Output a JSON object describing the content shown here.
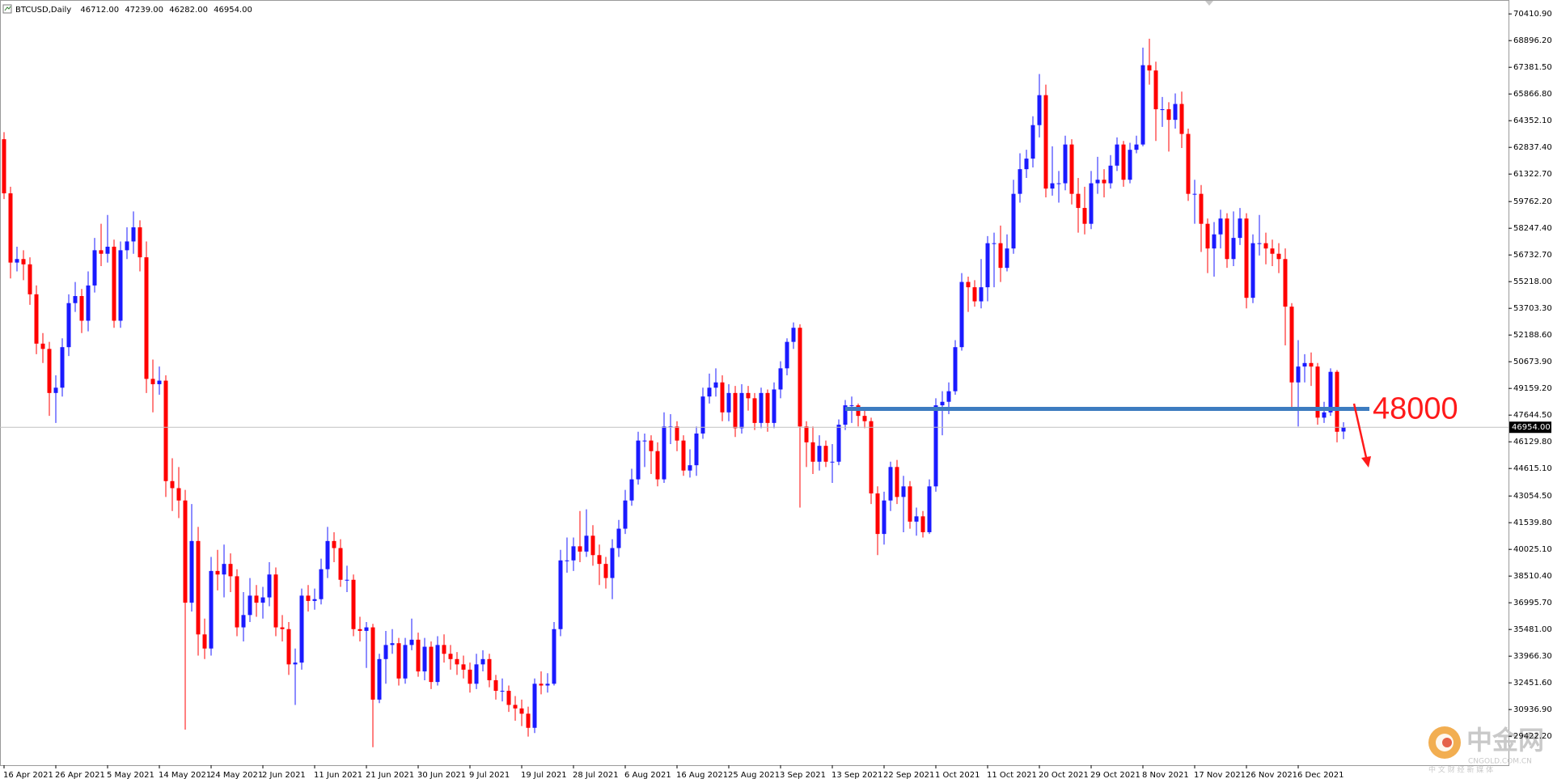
{
  "chart_data": {
    "type": "candlestick",
    "symbol": "BTCUSD,Daily",
    "ohlc_labels": [
      "46712.00",
      "47239.00",
      "46282.00",
      "46954.00"
    ],
    "up_color": "#1a1aff",
    "down_color": "#ff0000",
    "categories": [
      "16 Apr 2021",
      null,
      null,
      null,
      null,
      null,
      null,
      null,
      "26 Apr 2021",
      null,
      null,
      null,
      null,
      null,
      null,
      null,
      "5 May 2021",
      null,
      null,
      null,
      null,
      null,
      null,
      null,
      "14 May 2021",
      null,
      null,
      null,
      null,
      null,
      null,
      null,
      "24 May 2021",
      null,
      null,
      null,
      null,
      null,
      null,
      null,
      "2 Jun 2021",
      null,
      null,
      null,
      null,
      null,
      null,
      null,
      "11 Jun 2021",
      null,
      null,
      null,
      null,
      null,
      null,
      null,
      "21 Jun 2021",
      null,
      null,
      null,
      null,
      null,
      null,
      null,
      "30 Jun 2021",
      null,
      null,
      null,
      null,
      null,
      null,
      null,
      "9 Jul 2021",
      null,
      null,
      null,
      null,
      null,
      null,
      null,
      "19 Jul 2021",
      null,
      null,
      null,
      null,
      null,
      null,
      null,
      "28 Jul 2021",
      null,
      null,
      null,
      null,
      null,
      null,
      null,
      "6 Aug 2021",
      null,
      null,
      null,
      null,
      null,
      null,
      null,
      "16 Aug 2021",
      null,
      null,
      null,
      null,
      null,
      null,
      null,
      "25 Aug 2021",
      null,
      null,
      null,
      null,
      null,
      null,
      null,
      "3 Sep 2021",
      null,
      null,
      null,
      null,
      null,
      null,
      null,
      "13 Sep 2021",
      null,
      null,
      null,
      null,
      null,
      null,
      null,
      "22 Sep 2021",
      null,
      null,
      null,
      null,
      null,
      null,
      null,
      "1 Oct 2021",
      null,
      null,
      null,
      null,
      null,
      null,
      null,
      "11 Oct 2021",
      null,
      null,
      null,
      null,
      null,
      null,
      null,
      "20 Oct 2021",
      null,
      null,
      null,
      null,
      null,
      null,
      null,
      "29 Oct 2021",
      null,
      null,
      null,
      null,
      null,
      null,
      null,
      "8 Nov 2021",
      null,
      null,
      null,
      null,
      null,
      null,
      null,
      "17 Nov 2021",
      null,
      null,
      null,
      null,
      null,
      null,
      null,
      "26 Nov 2021",
      null,
      null,
      null,
      null,
      null,
      null,
      null,
      "6 Dec 2021",
      null,
      null,
      null,
      null,
      null,
      null,
      null
    ],
    "open": [
      63300,
      60230,
      56300,
      56500,
      56200,
      54500,
      51700,
      51400,
      48900,
      49200,
      51500,
      54000,
      54400,
      53000,
      55000,
      57000,
      56800,
      57200,
      53000,
      57000,
      57500,
      58300,
      56600,
      49700,
      49400,
      49600,
      43900,
      43500,
      42800,
      37000,
      40500,
      35200,
      34400,
      38800,
      38600,
      39200,
      38500,
      35600,
      36300,
      37400,
      37000,
      37300,
      38600,
      35600,
      35500,
      33500,
      33600,
      37400,
      37100,
      37200,
      38900,
      40500,
      40100,
      38300,
      38300,
      35500,
      35400,
      35600,
      31500,
      33800,
      34600,
      34700,
      32700,
      34600,
      34900,
      33100,
      34500,
      32500,
      34600,
      34100,
      33800,
      33500,
      33200,
      32400,
      33500,
      33800,
      32600,
      32000,
      32000,
      31200,
      31000,
      30700,
      29900,
      32400,
      32300,
      32400,
      35500,
      39400,
      39400,
      40200,
      39900,
      40800,
      39700,
      39200,
      38400,
      40100,
      41200,
      42800,
      44000,
      46200,
      46200,
      45600,
      44000,
      47000,
      47000,
      46200,
      44500,
      44800,
      46600,
      48700,
      49200,
      49500,
      47800,
      48900,
      46900,
      48900,
      48600,
      47200,
      48900,
      47200,
      49100,
      50300,
      51800,
      52600,
      47000,
      46100,
      45000,
      45900,
      45000,
      45000,
      47100,
      48200,
      48200,
      47600,
      47300,
      43200,
      40900,
      42800,
      44700,
      43000,
      43600,
      41600,
      41900,
      41000,
      43600,
      48200,
      48400,
      49000,
      51500,
      55200,
      54900,
      54100,
      54900,
      57400,
      57400,
      56000,
      57100,
      60200,
      61600,
      62200,
      64100,
      65800,
      60500,
      60800,
      60800,
      63000,
      60200,
      59400,
      58500,
      60800,
      61000,
      60800,
      61800,
      63000,
      61000,
      62700,
      63000,
      67500,
      67200,
      65000,
      65000,
      64400,
      65300,
      63600,
      60200,
      60200,
      58500,
      57100,
      57900,
      58800,
      56500,
      57700,
      58800,
      54300,
      57400,
      57400,
      57100,
      56800,
      56500,
      53800,
      49500,
      50400,
      50600,
      50400,
      47500,
      47800,
      50100,
      46712
    ],
    "high": [
      63700,
      60600,
      57200,
      57000,
      56600,
      55000,
      52300,
      51800,
      49900,
      52000,
      54500,
      55200,
      54800,
      55800,
      57700,
      58500,
      59000,
      57600,
      57500,
      58300,
      59200,
      58700,
      57500,
      50800,
      50400,
      49900,
      45200,
      44700,
      43400,
      42600,
      41300,
      36100,
      39600,
      40000,
      40300,
      39800,
      38900,
      37600,
      38400,
      38000,
      37900,
      39300,
      39000,
      36300,
      35900,
      34400,
      37800,
      38000,
      37800,
      39500,
      41300,
      41000,
      40600,
      39100,
      38600,
      36200,
      35900,
      35800,
      34100,
      35400,
      35500,
      35000,
      35000,
      36100,
      35300,
      35000,
      34800,
      35100,
      35200,
      34600,
      34200,
      34000,
      33600,
      34100,
      34300,
      34100,
      32900,
      32700,
      32300,
      31700,
      31500,
      31100,
      32700,
      33100,
      33000,
      35900,
      40000,
      40700,
      40700,
      42200,
      42300,
      41400,
      40300,
      39600,
      40600,
      41700,
      43400,
      44600,
      46700,
      46600,
      46500,
      46100,
      47800,
      47700,
      47300,
      46500,
      45700,
      47000,
      49200,
      50000,
      50300,
      49900,
      49400,
      49300,
      49400,
      49300,
      48900,
      49200,
      49100,
      49500,
      50700,
      52000,
      52900,
      52800,
      47300,
      47000,
      46500,
      46200,
      46000,
      47400,
      48500,
      48700,
      48300,
      47900,
      47500,
      43600,
      43300,
      45000,
      45100,
      44200,
      43900,
      42400,
      42200,
      44000,
      48600,
      49000,
      49500,
      51900,
      55700,
      55500,
      55300,
      56500,
      57800,
      58000,
      58400,
      57900,
      61000,
      62500,
      62700,
      64600,
      67000,
      66400,
      62900,
      61500,
      63500,
      63300,
      61100,
      60600,
      61500,
      62300,
      61600,
      62400,
      63400,
      63200,
      63100,
      63500,
      68500,
      69000,
      67700,
      65700,
      65400,
      65900,
      66000,
      63900,
      61000,
      60700,
      58800,
      58600,
      59300,
      59100,
      59200,
      59400,
      59100,
      57900,
      59000,
      58000,
      57600,
      57400,
      57100,
      54000,
      51900,
      51100,
      51200,
      50600,
      48400,
      50300,
      50200,
      47239
    ],
    "low": [
      59900,
      55400,
      55800,
      55300,
      53900,
      51100,
      50600,
      47600,
      47200,
      48700,
      51000,
      53500,
      52300,
      52400,
      54600,
      56100,
      56300,
      52600,
      52600,
      56500,
      56800,
      55800,
      48900,
      47800,
      48800,
      43000,
      42200,
      41800,
      29800,
      36500,
      34000,
      33800,
      34000,
      37700,
      37300,
      37600,
      35100,
      34800,
      35900,
      36200,
      36100,
      36800,
      35100,
      34800,
      32900,
      31200,
      33200,
      36500,
      36600,
      36900,
      38400,
      39300,
      37900,
      37600,
      35100,
      34800,
      33300,
      28800,
      31300,
      32400,
      34100,
      32300,
      32400,
      34300,
      32800,
      32600,
      32100,
      32300,
      33600,
      33200,
      32900,
      32700,
      31900,
      32100,
      33100,
      32200,
      31500,
      31400,
      30800,
      30300,
      30000,
      29400,
      29600,
      31800,
      31900,
      32300,
      35100,
      38700,
      38800,
      39300,
      39600,
      39100,
      38000,
      37800,
      37200,
      39600,
      40900,
      42500,
      43700,
      44700,
      44300,
      43600,
      43800,
      46000,
      45600,
      44200,
      44100,
      44200,
      46300,
      48300,
      48700,
      47300,
      47300,
      46400,
      46600,
      47900,
      46800,
      46900,
      46700,
      46900,
      48600,
      49900,
      51400,
      42400,
      44700,
      44300,
      44500,
      44700,
      43800,
      44800,
      46800,
      47200,
      47000,
      46900,
      42600,
      39700,
      40300,
      42200,
      42600,
      41000,
      41200,
      40800,
      40700,
      40900,
      43300,
      46500,
      47700,
      48800,
      51300,
      53500,
      53800,
      53700,
      54100,
      54900,
      55200,
      55800,
      56800,
      59700,
      61100,
      61700,
      63400,
      60000,
      60100,
      59700,
      60400,
      59600,
      58000,
      57900,
      58200,
      60200,
      60000,
      60500,
      61500,
      60600,
      60800,
      62500,
      62900,
      66400,
      63200,
      64000,
      62600,
      63900,
      62800,
      59800,
      58500,
      56900,
      55700,
      55500,
      57100,
      56000,
      56100,
      57300,
      53700,
      54000,
      56700,
      56200,
      56100,
      55700,
      51600,
      48000,
      47000,
      49500,
      49300,
      47100,
      47200,
      47600,
      46100,
      46282
    ],
    "close": [
      60230,
      56300,
      56500,
      56200,
      54500,
      51700,
      51400,
      48900,
      49200,
      51500,
      54000,
      54400,
      53000,
      55000,
      57000,
      56800,
      57200,
      53000,
      57000,
      57500,
      58300,
      56600,
      49700,
      49400,
      49600,
      43900,
      43500,
      42800,
      37000,
      40500,
      35200,
      34400,
      38800,
      38600,
      39200,
      38500,
      35600,
      36300,
      37400,
      37000,
      37300,
      38600,
      35600,
      35500,
      33500,
      33600,
      37400,
      37100,
      37200,
      38900,
      40500,
      40100,
      38300,
      38300,
      35500,
      35400,
      35600,
      31500,
      33800,
      34600,
      34700,
      32700,
      34600,
      34900,
      33100,
      34500,
      32500,
      34600,
      34100,
      33800,
      33500,
      33200,
      32400,
      33500,
      33800,
      32600,
      32000,
      32000,
      31200,
      31000,
      30700,
      29900,
      32400,
      32300,
      32400,
      35500,
      39400,
      39400,
      40200,
      39900,
      40800,
      39700,
      39200,
      38400,
      40100,
      41200,
      42800,
      44000,
      46200,
      46200,
      45600,
      44000,
      47000,
      47000,
      46200,
      44500,
      44800,
      46600,
      48700,
      49200,
      49500,
      47800,
      48900,
      46900,
      48900,
      48600,
      47200,
      48900,
      47200,
      49100,
      50300,
      51800,
      52600,
      47000,
      46100,
      45000,
      45900,
      45000,
      45000,
      47100,
      48200,
      48200,
      47600,
      47300,
      43200,
      40900,
      42800,
      44700,
      43000,
      43600,
      41600,
      41900,
      41000,
      43600,
      48200,
      48400,
      49000,
      51500,
      55200,
      54900,
      54100,
      54900,
      57400,
      57400,
      56000,
      57100,
      60200,
      61600,
      62200,
      64100,
      65800,
      60500,
      60800,
      60800,
      63000,
      60200,
      59400,
      58500,
      60800,
      61000,
      60800,
      61800,
      63000,
      61000,
      62700,
      63000,
      67500,
      67200,
      65000,
      65000,
      64400,
      65300,
      63600,
      60200,
      60200,
      58500,
      57100,
      57900,
      58800,
      56500,
      57700,
      58800,
      54300,
      57400,
      57400,
      57100,
      56800,
      56500,
      53800,
      49500,
      50400,
      50600,
      50400,
      47500,
      47800,
      50100,
      46700,
      46954
    ],
    "ylim": [
      27778,
      71200
    ],
    "yticks": [
      {
        "value": 70410.9,
        "label": "70410.90"
      },
      {
        "value": 68896.2,
        "label": "68896.20"
      },
      {
        "value": 67381.5,
        "label": "67381.50"
      },
      {
        "value": 65866.8,
        "label": "65866.80"
      },
      {
        "value": 64352.1,
        "label": "64352.10"
      },
      {
        "value": 62837.4,
        "label": "62837.40"
      },
      {
        "value": 61322.7,
        "label": "61322.70"
      },
      {
        "value": 59762.2,
        "label": "59762.20"
      },
      {
        "value": 58247.4,
        "label": "58247.40"
      },
      {
        "value": 56732.7,
        "label": "56732.70"
      },
      {
        "value": 55218,
        "label": "55218.00"
      },
      {
        "value": 53703.3,
        "label": "53703.30"
      },
      {
        "value": 52188.6,
        "label": "52188.60"
      },
      {
        "value": 50673.9,
        "label": "50673.90"
      },
      {
        "value": 49159.2,
        "label": "49159.20"
      },
      {
        "value": 47644.5,
        "label": "47644.50"
      },
      {
        "value": 46129.8,
        "label": "46129.80"
      },
      {
        "value": 44615.1,
        "label": "44615.10"
      },
      {
        "value": 43054.5,
        "label": "43054.50"
      },
      {
        "value": 41539.8,
        "label": "41539.80"
      },
      {
        "value": 40025.1,
        "label": "40025.10"
      },
      {
        "value": 38510.4,
        "label": "38510.40"
      },
      {
        "value": 36995.7,
        "label": "36995.70"
      },
      {
        "value": 35481,
        "label": "35481.00"
      },
      {
        "value": 33966.3,
        "label": "33966.30"
      },
      {
        "value": 32451.6,
        "label": "32451.60"
      },
      {
        "value": 30936.9,
        "label": "30936.90"
      },
      {
        "value": 29422.2,
        "label": "29422.20"
      }
    ],
    "current_price": {
      "value": 46954,
      "label": "46954.00"
    },
    "level": {
      "value": 48000,
      "color": "#3d7cc0",
      "label_color": "#ff1a1a"
    },
    "watermark": {
      "title": "中金网",
      "url": "CNGOLD.COM.CN",
      "tagline": "中 文 财 经 新 媒 体"
    }
  }
}
